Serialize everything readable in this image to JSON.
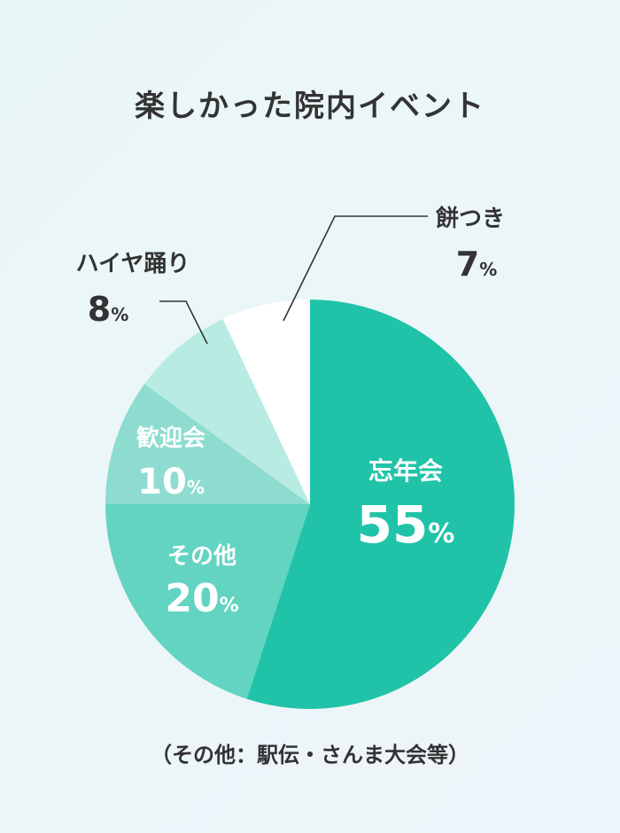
{
  "title": "楽しかった院内イベント",
  "footnote": "（その他：駅伝・さんま大会等）",
  "chart_data": {
    "type": "pie",
    "title": "楽しかった院内イベント",
    "unit": "%",
    "slices": [
      {
        "label": "忘年会",
        "value": 55,
        "color": "#20c3a8",
        "text_color": "#ffffff",
        "label_inside": true
      },
      {
        "label": "その他",
        "value": 20,
        "color": "#63d4c1",
        "text_color": "#ffffff",
        "label_inside": true
      },
      {
        "label": "歓迎会",
        "value": 10,
        "color": "#8ddccf",
        "text_color": "#ffffff",
        "label_inside": true
      },
      {
        "label": "ハイヤ踊り",
        "value": 8,
        "color": "#b8ebe2",
        "text_color": "#333333",
        "label_inside": false
      },
      {
        "label": "餅つき",
        "value": 7,
        "color": "#ffffff",
        "text_color": "#333333",
        "label_inside": false
      }
    ],
    "start_angle": "12 o'clock",
    "direction": "clockwise",
    "legend": "none"
  }
}
